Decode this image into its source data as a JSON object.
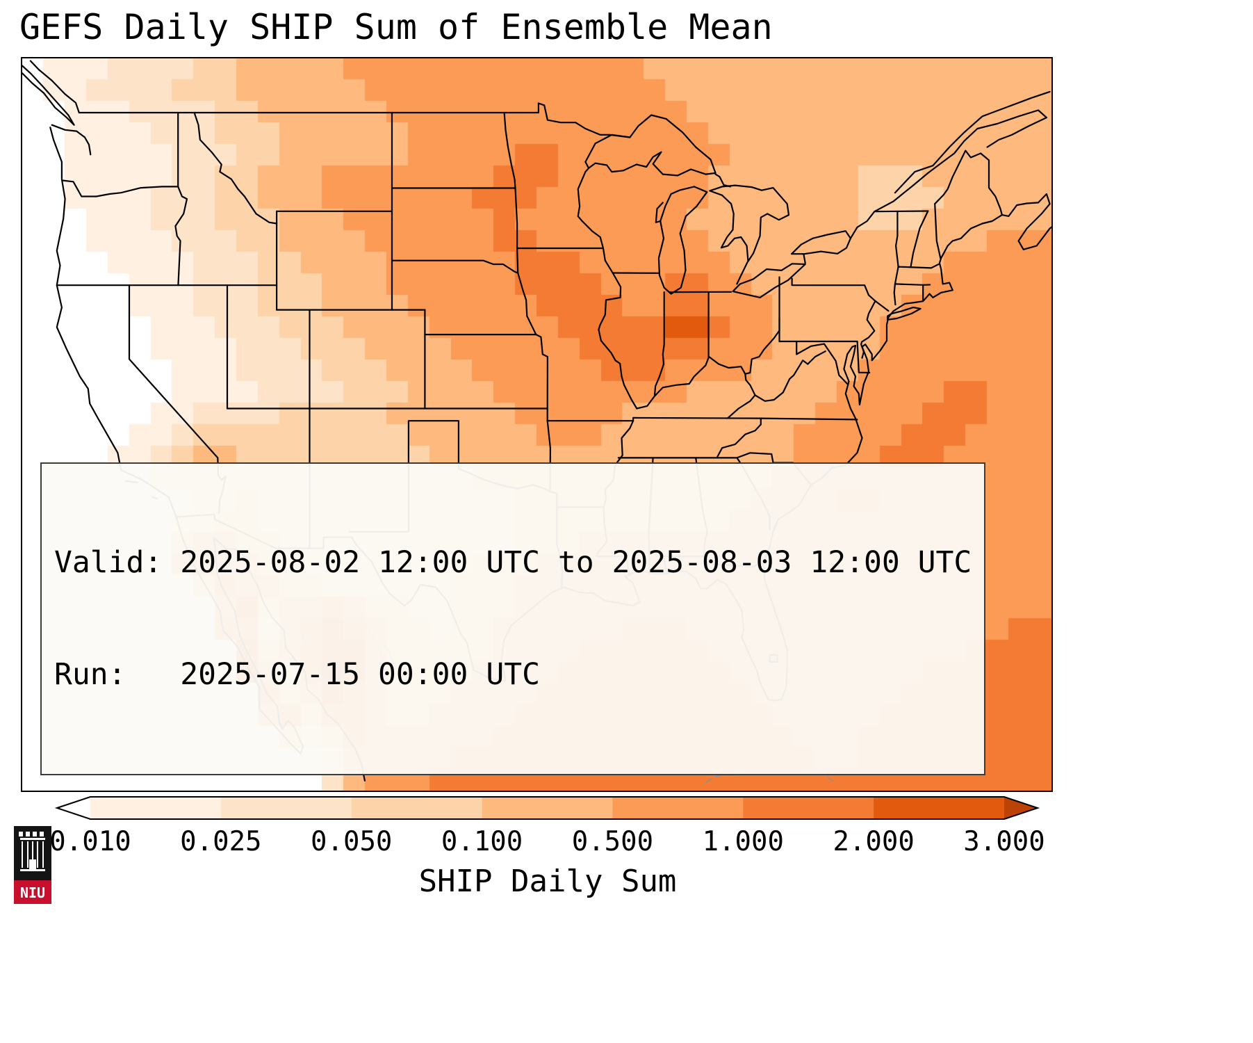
{
  "title": "GEFS Daily SHIP Sum of Ensemble Mean",
  "info_box": {
    "line1": "Valid: 2025-08-02 12:00 UTC to 2025-08-03 12:00 UTC",
    "line2": "Run:   2025-07-15 00:00 UTC"
  },
  "colorbar": {
    "label": "SHIP Daily Sum",
    "ticks": [
      "0.010",
      "0.025",
      "0.050",
      "0.100",
      "0.500",
      "1.000",
      "2.000",
      "3.000"
    ]
  },
  "logo": {
    "text": "NIU"
  },
  "chart_data": {
    "type": "heatmap",
    "title": "GEFS Daily SHIP Sum of Ensemble Mean",
    "field": "SHIP Daily Sum",
    "valid": "2025-08-02 12:00 UTC to 2025-08-03 12:00 UTC",
    "run": "2025-07-15 00:00 UTC",
    "levels": [
      0.01,
      0.025,
      0.05,
      0.1,
      0.5,
      1.0,
      2.0,
      3.0
    ],
    "palette": [
      "#ffffff",
      "#fff0e1",
      "#fde3c8",
      "#fdd3a9",
      "#fdb97e",
      "#fb9b56",
      "#f47b33",
      "#e25a0e",
      "#bc4206"
    ],
    "extent": {
      "lon": [
        -126.5,
        -64.0
      ],
      "lat": [
        21.5,
        51.2
      ]
    },
    "grid_cols": 48,
    "grid_rows": 34,
    "grid": [
      "011122223344444555555555555554444444444444444444",
      "011222233344444455555555555555444444444444444444",
      "001112222334444445555555555555544444444444444444",
      "001111222333444444555555555555554444444444444444",
      "001111122233444444555556655555555444444444444444",
      "001111122334445555555566655555554444444333444444",
      "001111222334445555555666555555554444444333344444",
      "000111222333444555555565555555544444444333444444",
      "000111122233444455555566555555554444444444444555",
      "000011112223344445555556665555555444444444455555",
      "000001112223334445555556666555665544444444555555",
      "000001112223334444555555666655665554444445555555",
      "000000111222333444455555566666776554444455555555",
      "000000111122233344445555556666665554444455555555",
      "000000011122223334444555555666555544444555555555",
      "000000011112222333444455555555544444445555566555",
      "000000112222333334444445555544444444455555666555",
      "000001123333333333444444555444444444555556665555",
      "000011234433333333344444444444444444555566655555",
      "000000233333222333333444444444444445555555555555",
      "000000013343332223333334444444444455556655555555",
      "000000023443332222333334444444444555555555555555",
      "000000045544332222333334445555555555555555555555",
      "000000056554433223333444555555555555555555555555",
      "000000004655443333334445555555555555555555555555",
      "000000000574556544334445555555555555555555555555",
      "000000000663567654434455555566655555555555555566",
      "000000000074567754444455556666665555555555556666",
      "000000000075368754444555566666666555555555666666",
      "000000000006457654445555666666666655555556666666",
      "000000000005646654455556666666666665555566666666",
      "000000000000424655555566666666666666555666666666",
      "000000000000013555556666666666666666655666666666",
      "000000000000002455566666666666666666666666666666"
    ]
  }
}
